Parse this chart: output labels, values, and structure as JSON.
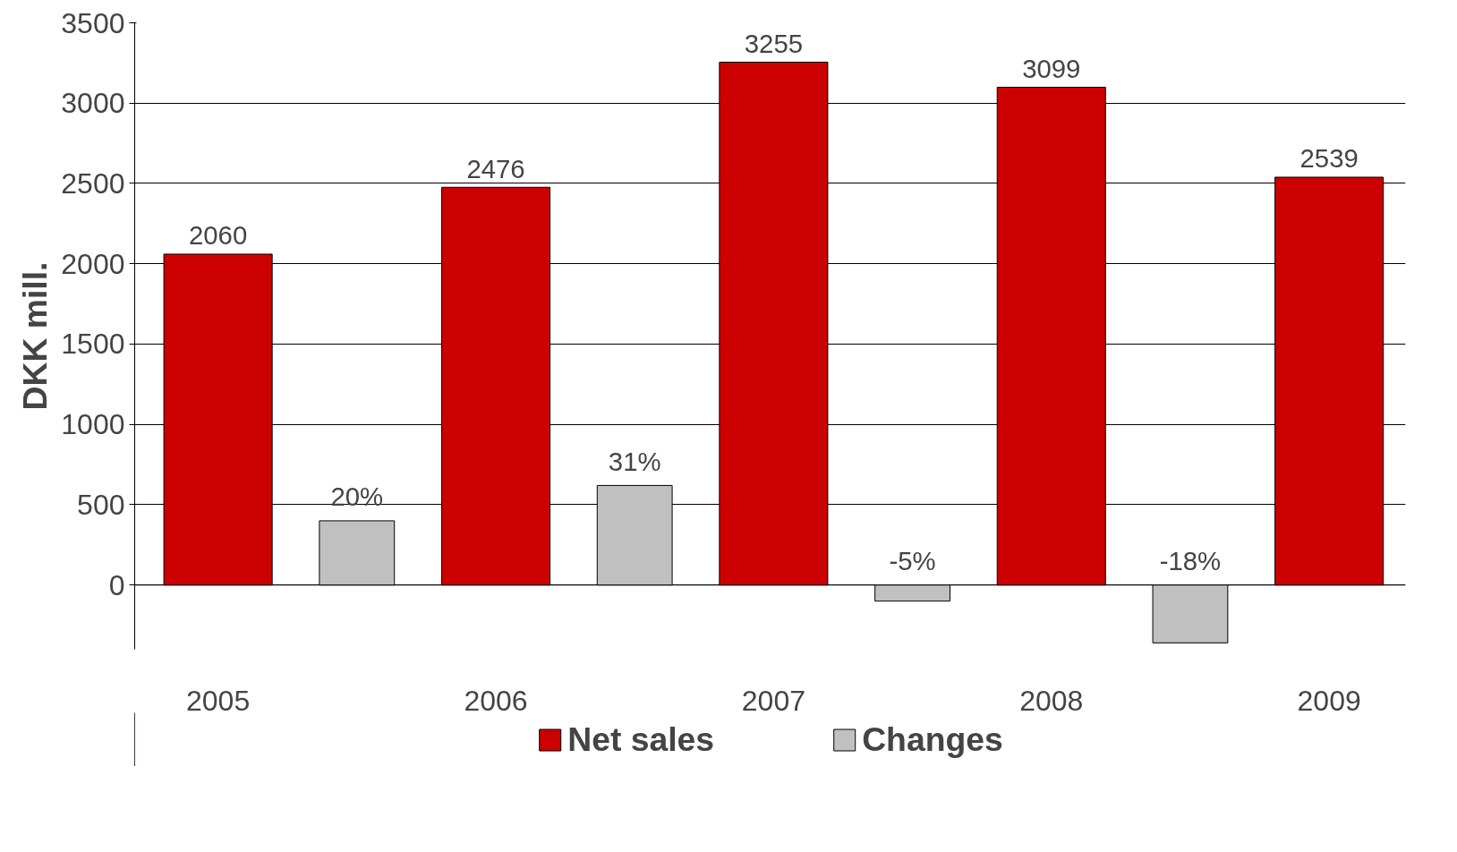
{
  "chart_data": {
    "type": "bar",
    "ylabel": "DKK mill.",
    "categories": [
      "2005",
      null,
      "2006",
      null,
      "2007",
      null,
      "2008",
      null,
      "2009"
    ],
    "series": [
      {
        "name": "Net sales",
        "color": "#cc0000",
        "values": [
          2060,
          null,
          2476,
          null,
          3255,
          null,
          3099,
          null,
          2539
        ],
        "value_labels": [
          "2060",
          null,
          "2476",
          null,
          "3255",
          null,
          "3099",
          null,
          "2539"
        ]
      },
      {
        "name": "Changes",
        "color": "#c0c0c0",
        "axis": "y2",
        "values": [
          null,
          20,
          null,
          31,
          null,
          -5,
          null,
          -18,
          null
        ],
        "value_labels": [
          null,
          "20%",
          null,
          "31%",
          null,
          "-5%",
          null,
          "-18%",
          null
        ]
      }
    ],
    "ylim": [
      -400,
      3500
    ],
    "y2lim": [
      -20,
      175
    ],
    "yticks": [
      0,
      500,
      1000,
      1500,
      2000,
      2500,
      3000,
      3500
    ],
    "grid": "y",
    "legend": "bottom"
  }
}
